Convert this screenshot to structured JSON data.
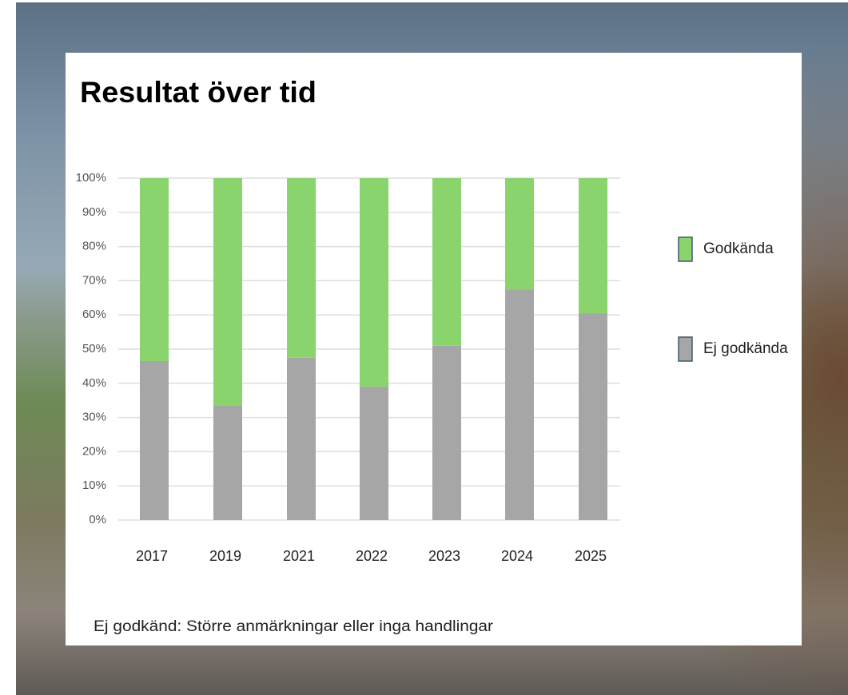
{
  "chart_data": {
    "type": "stacked-bar",
    "title": "Resultat över tid",
    "categories": [
      "2017",
      "2019",
      "2021",
      "2022",
      "2023",
      "2024",
      "2025"
    ],
    "series": [
      {
        "name": "Ej godkända",
        "color": "#a6a6a6",
        "values": [
          46.5,
          33.5,
          47.5,
          39,
          51,
          67.5,
          60.5
        ]
      },
      {
        "name": "Godkända",
        "color": "#8ad46e",
        "values": [
          53.5,
          66.5,
          52.5,
          61,
          49,
          32.5,
          39.5
        ]
      }
    ],
    "ylim": [
      0,
      100
    ],
    "yticks": [
      {
        "value": 0,
        "label": "0%"
      },
      {
        "value": 10,
        "label": "10%"
      },
      {
        "value": 20,
        "label": "20%"
      },
      {
        "value": 30,
        "label": "30%"
      },
      {
        "value": 40,
        "label": "40%"
      },
      {
        "value": 50,
        "label": "50%"
      },
      {
        "value": 60,
        "label": "60%"
      },
      {
        "value": 70,
        "label": "70%"
      },
      {
        "value": 80,
        "label": "80%"
      },
      {
        "value": 90,
        "label": "90%"
      },
      {
        "value": 100,
        "label": "100%"
      }
    ],
    "grid": true,
    "legend": "right",
    "footnote": "Ej godkänd: Större anmärkningar eller inga handlingar"
  }
}
